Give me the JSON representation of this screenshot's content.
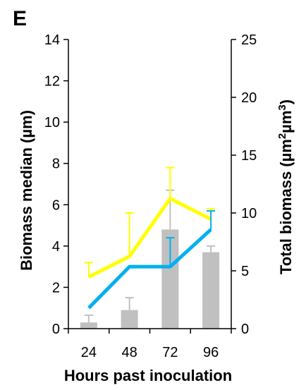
{
  "panel_label": "E",
  "chart_data": {
    "type": "bar+line",
    "xlabel": "Hours past inoculation",
    "ylabel_left": "Biomass median (µm)",
    "ylabel_right_parts": [
      "Total biomass (µm",
      "2",
      "µm",
      "3",
      ")"
    ],
    "categories": [
      "24",
      "48",
      "72",
      "96"
    ],
    "y_left": {
      "min": 0,
      "max": 14,
      "ticks": [
        0,
        2,
        4,
        6,
        8,
        10,
        12,
        14
      ]
    },
    "y_right": {
      "min": 0,
      "max": 25,
      "ticks": [
        0,
        5,
        10,
        15,
        20,
        25
      ]
    },
    "bars": {
      "axis": "left",
      "color": "#c0c0c0",
      "values": [
        0.3,
        0.9,
        4.8,
        3.7
      ],
      "error": [
        0.35,
        0.6,
        1.9,
        0.3
      ]
    },
    "series": [
      {
        "axis": "left",
        "color": "#ffff00",
        "values": [
          2.5,
          3.5,
          6.3,
          5.3
        ],
        "error": [
          0.7,
          2.1,
          1.5,
          0.5
        ]
      },
      {
        "axis": "left",
        "color": "#00b0f0",
        "values": [
          1.0,
          3.0,
          3.0,
          4.8
        ],
        "error": [
          0,
          0,
          1.4,
          0.9
        ]
      }
    ],
    "grid": false
  }
}
